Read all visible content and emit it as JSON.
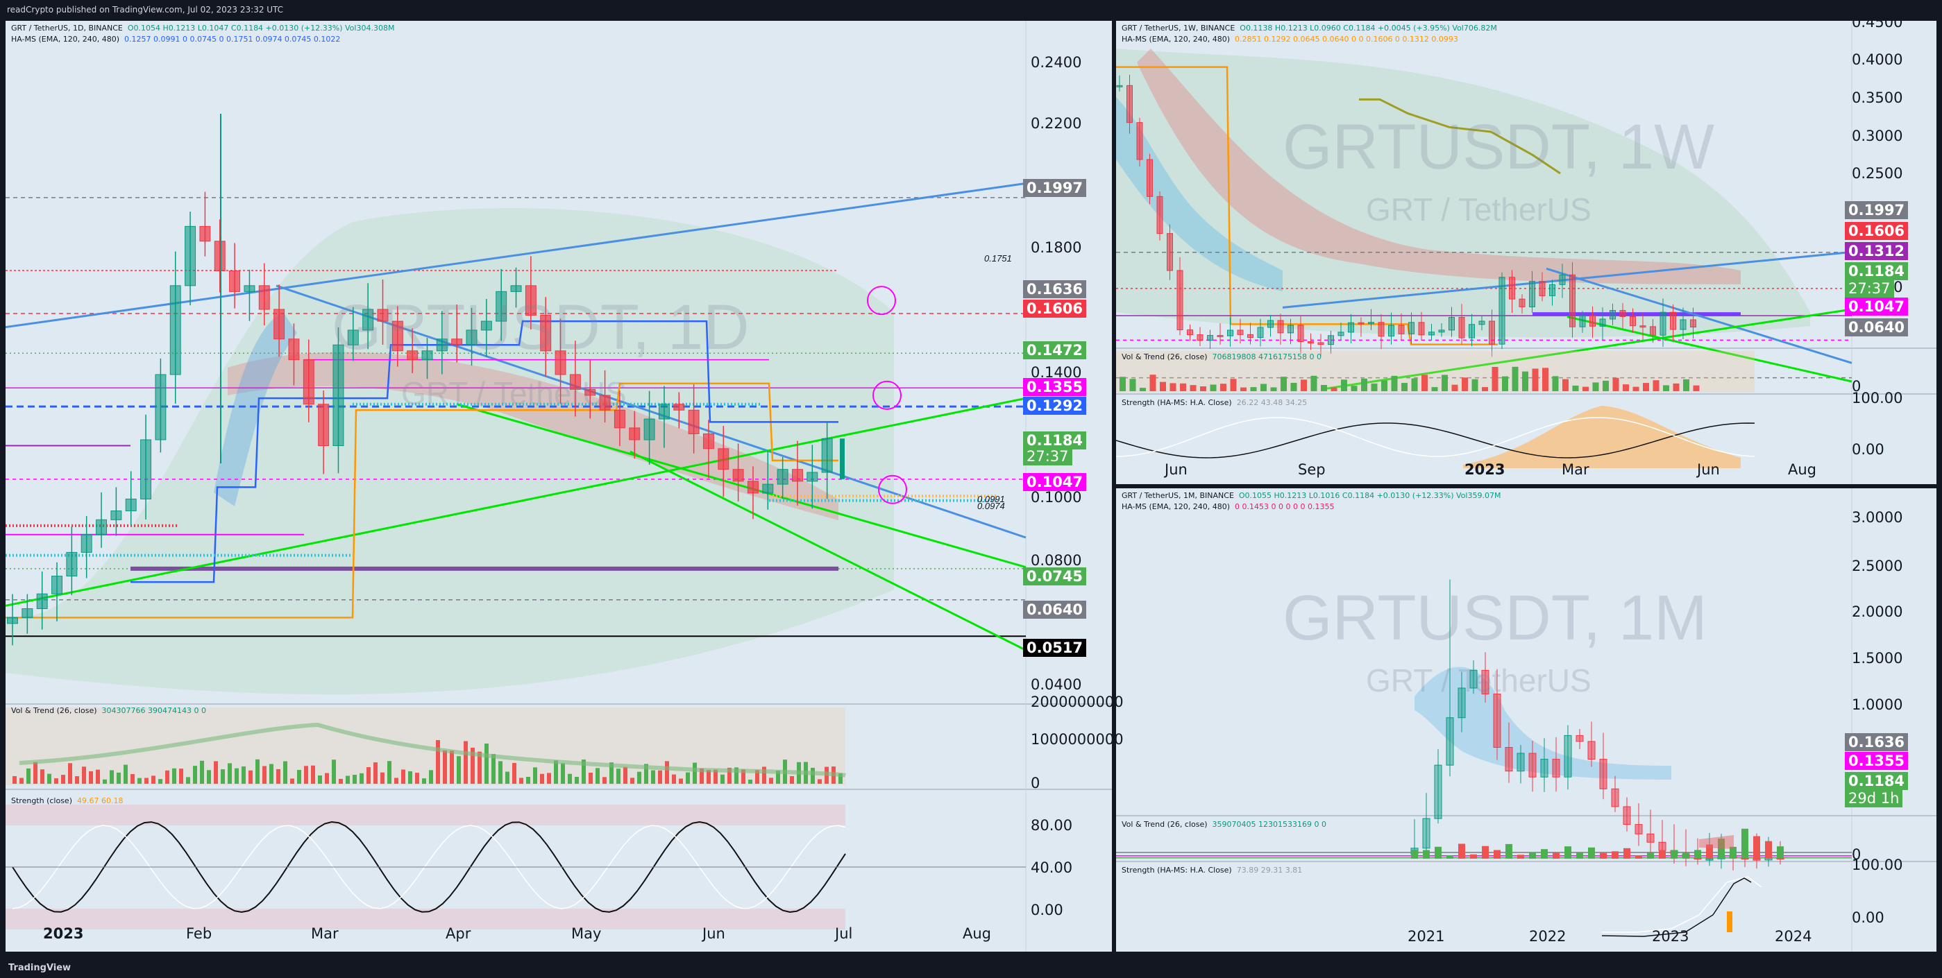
{
  "topbar": {
    "text": "readCrypto published on TradingView.com, Jul 02, 2023 23:32 UTC"
  },
  "footer": {
    "brand": "TradingView"
  },
  "colors": {
    "green": "#00e600",
    "blue": "#4a90e2",
    "orange": "#ff9800",
    "magenta": "#ff00ff",
    "purple": "#9c27b0"
  },
  "main": {
    "header1": "GRT / TetherUS, 1D, BINANCE",
    "header1_vals": "O0.1054  H0.1213  L0.1047  C0.1184  +0.0130 (+12.33%)  Vol304.308M",
    "header2": "HA-MS (EMA, 120, 240, 480)",
    "header2_vals": "0.1257  0.0991  0  0.0745  0  0.1751  0.0974  0.0745  0.1022",
    "watermark": "GRTUSDT, 1D",
    "watermark2": "GRT / TetherUS",
    "vol_label": "Vol & Trend (26, close)",
    "vol_vals": "304307766  390474143  0  0",
    "str_label": "Strength (close)",
    "str_vals": "49.67  60.18",
    "note_1751": "0.1751",
    "note_0991": "0.0991",
    "note_0974": "0.0974",
    "countdown": "27:37"
  },
  "week": {
    "header1": "GRT / TetherUS, 1W, BINANCE",
    "header1_vals": "O0.1138  H0.1213  L0.0960  C0.1184  +0.0045 (+3.95%)  Vol706.82M",
    "header2": "HA-MS (EMA, 120, 240, 480)",
    "header2_vals": "0.2851  0.1292  0.0645  0.0640  0  0  0.1606  0  0.1312  0.0993",
    "watermark": "GRTUSDT, 1W",
    "watermark2": "GRT / TetherUS",
    "vol_label": "Vol & Trend (26, close)",
    "vol_vals": "706819808  4716175158  0  0",
    "str_label": "Strength (HA-MS: H.A. Close)",
    "str_vals": "26.22  43.48  34.25",
    "countdown": "27:37"
  },
  "month": {
    "header1": "GRT / TetherUS, 1M, BINANCE",
    "header1_vals": "O0.1055  H0.1213  L0.1016  C0.1184  +0.0130 (+12.33%)  Vol359.07M",
    "header2": "HA-MS (EMA, 120, 240, 480)",
    "header2_vals": "0  0.1453  0  0  0  0  0  0.1355",
    "watermark": "GRTUSDT, 1M",
    "watermark2": "GRT / TetherUS",
    "vol_label": "Vol & Trend (26, close)",
    "vol_vals": "359070405  12301533169  0  0",
    "str_label": "Strength (HA-MS: H.A. Close)",
    "str_vals": "73.89  29.31  3.81",
    "countdown": "29d 1h"
  },
  "chart_data": [
    {
      "type": "candlestick",
      "title": "GRT / TetherUS, 1D, BINANCE",
      "ylim": [
        0.03,
        0.25
      ],
      "y_ticks": [
        "0.2400",
        "0.2200",
        "0.1800",
        "0.1400",
        "0.1000",
        "0.0800",
        "0.0400"
      ],
      "x_ticks": [
        "2023",
        "Feb",
        "Mar",
        "Apr",
        "May",
        "Jun",
        "Jul",
        "Aug"
      ],
      "price_tags": [
        {
          "label": "0.1997",
          "bg": "#787b86"
        },
        {
          "label": "0.1636",
          "bg": "#787b86"
        },
        {
          "label": "0.1606",
          "bg": "#f23645"
        },
        {
          "label": "0.1472",
          "bg": "#4caf50"
        },
        {
          "label": "0.1355",
          "bg": "#ff00ff"
        },
        {
          "label": "0.1292",
          "bg": "#2962ff"
        },
        {
          "label": "0.1184",
          "bg": "#4caf50"
        },
        {
          "label": "0.1047",
          "bg": "#ff00ff"
        },
        {
          "label": "0.0745",
          "bg": "#4caf50"
        },
        {
          "label": "0.0640",
          "bg": "#787b86"
        },
        {
          "label": "0.0517",
          "bg": "#000000"
        }
      ],
      "vol_ticks": [
        "2000000000",
        "1000000000",
        "0"
      ],
      "str_ticks": [
        "80.00",
        "40.00",
        "0.00"
      ],
      "close": [
        0.058,
        0.061,
        0.066,
        0.072,
        0.08,
        0.086,
        0.091,
        0.094,
        0.098,
        0.118,
        0.14,
        0.17,
        0.19,
        0.185,
        0.175,
        0.168,
        0.17,
        0.162,
        0.152,
        0.145,
        0.13,
        0.116,
        0.15,
        0.155,
        0.162,
        0.158,
        0.148,
        0.145,
        0.148,
        0.152,
        0.15,
        0.155,
        0.158,
        0.168,
        0.17,
        0.16,
        0.148,
        0.14,
        0.135,
        0.133,
        0.128,
        0.122,
        0.118,
        0.125,
        0.13,
        0.128,
        0.12,
        0.115,
        0.108,
        0.104,
        0.1,
        0.103,
        0.108,
        0.104,
        0.107,
        0.1184
      ]
    },
    {
      "type": "candlestick",
      "title": "GRT / TetherUS, 1W, BINANCE",
      "ylim": [
        0.0,
        0.45
      ],
      "y_ticks": [
        "0.4500",
        "0.4000",
        "0.3500",
        "0.3000",
        "0.2500",
        "0.2000",
        "0.1500",
        "0.1000",
        "0.0500"
      ],
      "x_ticks": [
        "Jun",
        "Sep",
        "2023",
        "Mar",
        "Jun",
        "Aug"
      ],
      "price_tags": [
        {
          "label": "0.1997",
          "bg": "#787b86"
        },
        {
          "label": "0.1606",
          "bg": "#f23645"
        },
        {
          "label": "0.1312",
          "bg": "#9c27b0"
        },
        {
          "label": "0.1184",
          "bg": "#4caf50"
        },
        {
          "label": "0.1047",
          "bg": "#ff00ff"
        },
        {
          "label": "0.0640",
          "bg": "#787b86"
        }
      ],
      "str_ticks": [
        "100.00",
        "0.00"
      ],
      "vol_ticks": [
        "0"
      ]
    },
    {
      "type": "candlestick",
      "title": "GRT / TetherUS, 1M, BINANCE",
      "ylim": [
        0.0,
        3.1
      ],
      "y_ticks": [
        "3.0000",
        "2.5000",
        "2.0000",
        "1.5000",
        "1.0000"
      ],
      "x_ticks": [
        "2021",
        "2022",
        "2023",
        "2024"
      ],
      "price_tags": [
        {
          "label": "0.1636",
          "bg": "#787b86"
        },
        {
          "label": "0.1355",
          "bg": "#ff00ff"
        },
        {
          "label": "0.1184",
          "bg": "#4caf50"
        }
      ],
      "str_ticks": [
        "100.00",
        "0.00"
      ],
      "vol_ticks": [
        "0"
      ]
    }
  ]
}
